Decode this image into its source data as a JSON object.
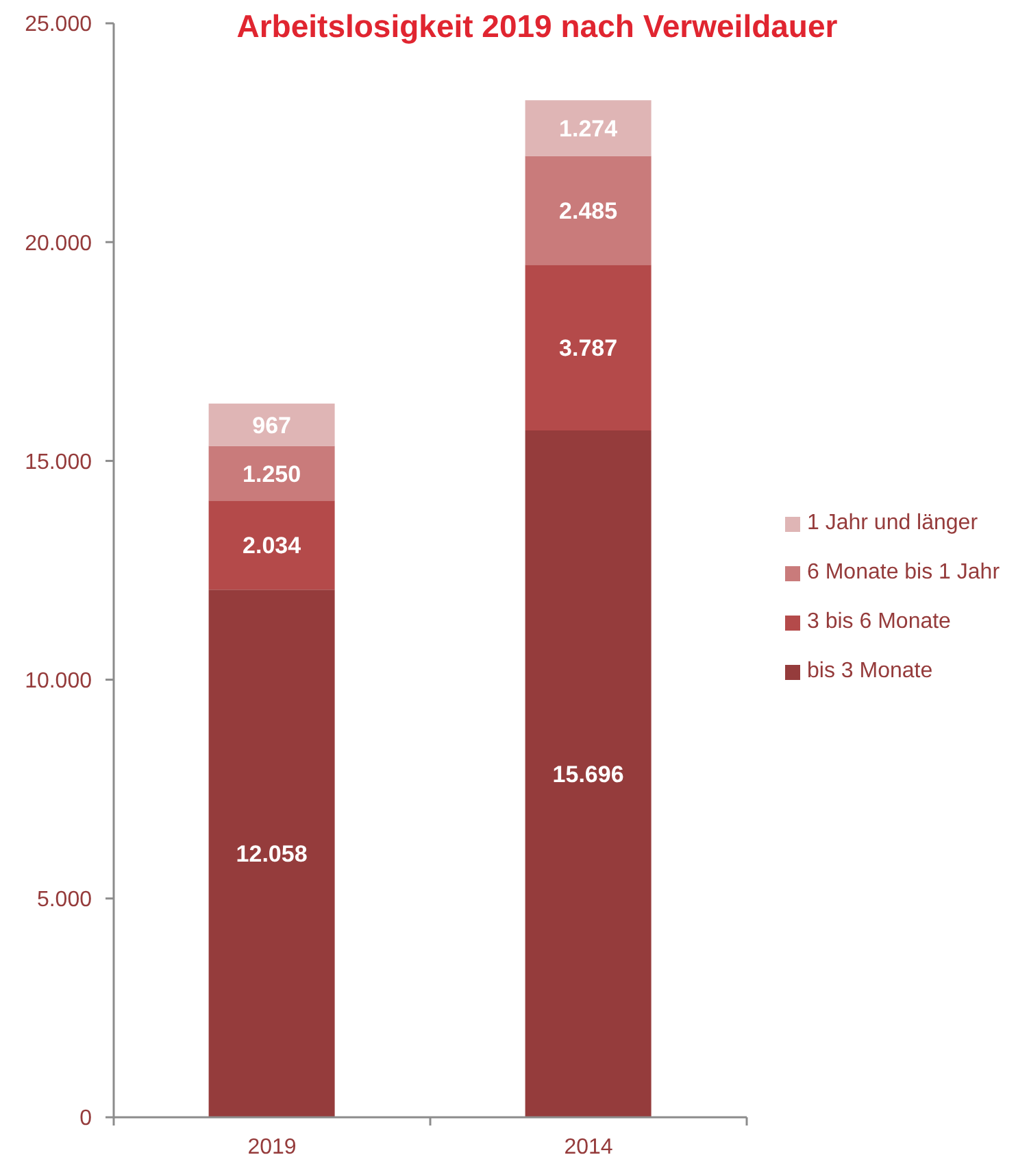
{
  "chart_data": {
    "type": "bar",
    "title": "Arbeitslosigkeit 2019 nach Verweildauer",
    "categories": [
      "2019",
      "2014"
    ],
    "series": [
      {
        "name": "bis 3 Monate",
        "color": "#953c3c",
        "values": [
          12058,
          15696
        ],
        "value_labels": [
          "12.058",
          "15.696"
        ]
      },
      {
        "name": "3 bis 6 Monate",
        "color": "#b44a4a",
        "values": [
          2034,
          3787
        ],
        "value_labels": [
          "2.034",
          "3.787"
        ]
      },
      {
        "name": "6 Monate bis 1 Jahr",
        "color": "#c97b7b",
        "values": [
          1250,
          2485
        ],
        "value_labels": [
          "1.250",
          "2.485"
        ]
      },
      {
        "name": "1 Jahr und länger",
        "color": "#dfb5b5",
        "values": [
          967,
          1274
        ],
        "value_labels": [
          "967",
          "1.274"
        ]
      }
    ],
    "stacked": true,
    "ylim": [
      0,
      25000
    ],
    "yticks": [
      0,
      {
        "value": 5000,
        "label": "5.000"
      },
      {
        "value": 10000,
        "label": "10.000"
      },
      {
        "value": 15000,
        "label": "15.000"
      },
      {
        "value": 20000,
        "label": "20.000"
      },
      {
        "value": 25000,
        "label": "25.000"
      }
    ],
    "grid": false,
    "legend": "right"
  }
}
